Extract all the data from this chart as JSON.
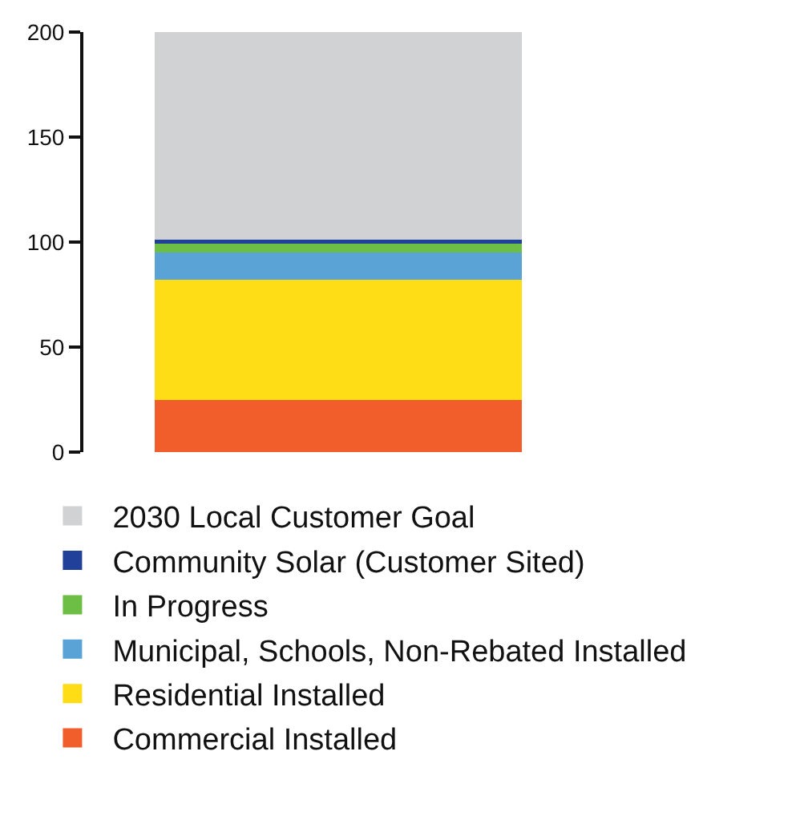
{
  "chart_data": {
    "type": "bar",
    "stacked": true,
    "categories": [
      null
    ],
    "series": [
      {
        "name": "Commercial Installed",
        "color": "#f15e2c",
        "values": [
          25
        ]
      },
      {
        "name": "Residential Installed",
        "color": "#fedd17",
        "values": [
          57
        ]
      },
      {
        "name": "Municipal, Schools, Non-Rebated Installed",
        "color": "#5aa3d6",
        "values": [
          13
        ]
      },
      {
        "name": "In Progress",
        "color": "#6cbe45",
        "values": [
          4.5
        ]
      },
      {
        "name": "Community Solar (Customer Sited)",
        "color": "#21409a",
        "values": [
          1.5
        ]
      },
      {
        "name": "2030 Local Customer Goal",
        "color": "#d1d2d4",
        "values": [
          99
        ]
      }
    ],
    "ylim": [
      0,
      200
    ],
    "yticks": [
      0,
      50,
      100,
      150,
      200
    ],
    "grid": false,
    "legend": "bottom"
  }
}
